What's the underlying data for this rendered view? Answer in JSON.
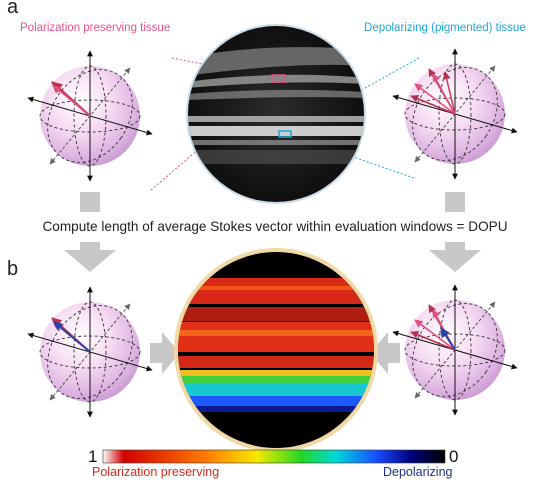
{
  "panels": {
    "a": "a",
    "b": "b"
  },
  "annotations": {
    "left": "Polarization preserving tissue",
    "right": "Depolarizing (pigmented) tissue"
  },
  "compute_text": "Compute length of average Stokes vector within evaluation windows = DOPU",
  "colorbar": {
    "left_value": "1",
    "right_value": "0",
    "left_label": "Polarization preserving",
    "right_label": "Depolarizing",
    "stops": [
      "#fefefe",
      "#d10000",
      "#ff7a00",
      "#f6e800",
      "#22d822",
      "#00d8d8",
      "#1a4dff",
      "#000080",
      "#000000"
    ]
  },
  "colors": {
    "pink": "#e8508c",
    "cyan": "#1aa8d8",
    "gray_arrow": "#c8c8c8"
  }
}
